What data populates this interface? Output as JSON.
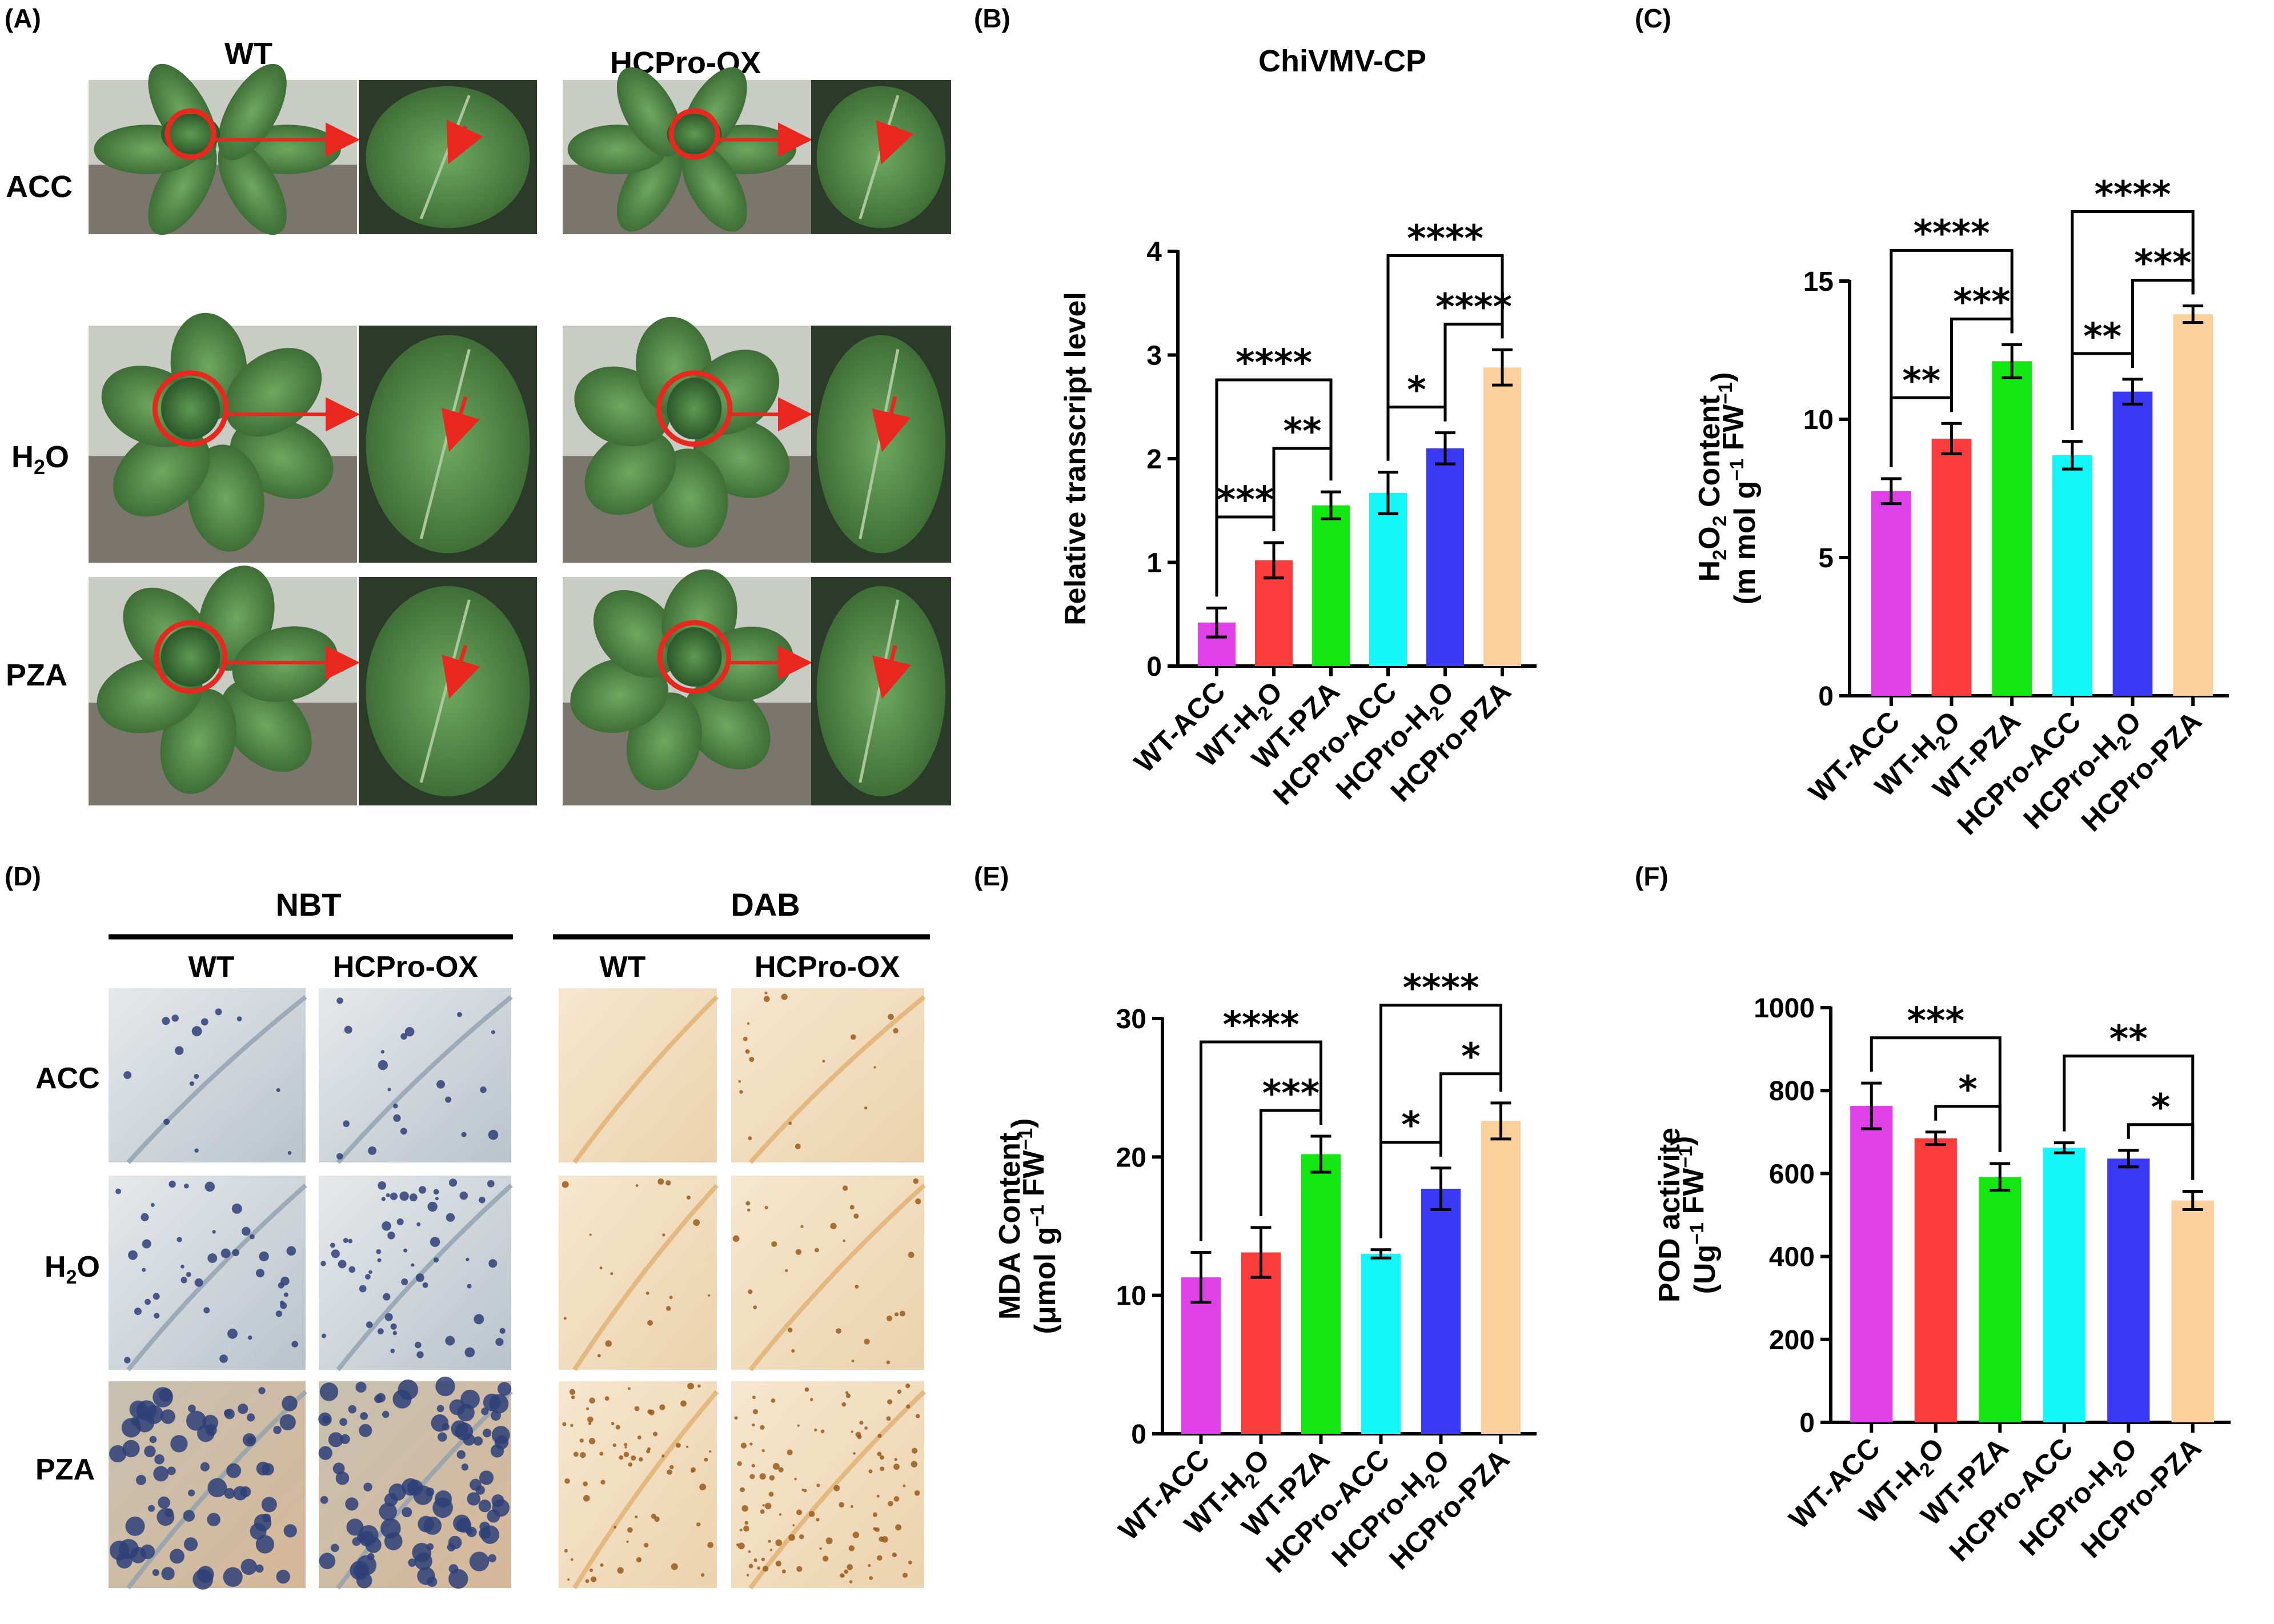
{
  "panels": {
    "A": {
      "label": "(A)",
      "col_headers": [
        "WT",
        "HCPro-OX"
      ],
      "row_labels": [
        "ACC",
        "H2O",
        "PZA"
      ]
    },
    "D": {
      "label": "(D)",
      "groups": [
        "NBT",
        "DAB"
      ],
      "col_headers": [
        "WT",
        "HCPro-OX",
        "WT",
        "HCPro-OX"
      ],
      "row_labels": [
        "ACC",
        "H2O",
        "PZA"
      ]
    }
  },
  "colors": {
    "WT-ACC": "#e040e8",
    "WT-H2O": "#fa3c3c",
    "WT-PZA": "#12e712",
    "HCPro-ACC": "#12f7f7",
    "HCPro-H2O": "#3a3af6",
    "HCPro-PZA": "#fbd09c",
    "leaf_green": "#4f8a45",
    "leaf_dark": "#2f5a2a",
    "soil": "#3b2f25",
    "nbt_bg": "#dfe3e6",
    "nbt_spot": "#2e3f78",
    "dab_bg": "#f1dcc0",
    "dab_spot": "#9a5a1c",
    "annotation_red": "#e8281e"
  },
  "icons": [
    "circle-marker-icon",
    "arrow-pointer-icon"
  ],
  "chart_data": [
    {
      "panel": "(B)",
      "type": "bar",
      "title": "ChiVMV-CP",
      "xlabel": "",
      "ylabel": "Relative transcript level",
      "categories": [
        "WT-ACC",
        "WT-H2O",
        "WT-PZA",
        "HCPro-ACC",
        "HCPro-H2O",
        "HCPro-PZA"
      ],
      "values": [
        0.42,
        1.02,
        1.55,
        1.67,
        2.1,
        2.88
      ],
      "errors": [
        0.14,
        0.17,
        0.13,
        0.2,
        0.15,
        0.17
      ],
      "ylim": [
        0,
        4
      ],
      "yticks": [
        "0",
        "1",
        "2",
        "3",
        "4"
      ],
      "grid": false,
      "significance": [
        {
          "from": 0,
          "to": 1,
          "label": "***"
        },
        {
          "from": 0,
          "to": 2,
          "label": "****"
        },
        {
          "from": 1,
          "to": 2,
          "label": "**"
        },
        {
          "from": 3,
          "to": 4,
          "label": "*"
        },
        {
          "from": 3,
          "to": 5,
          "label": "****"
        },
        {
          "from": 4,
          "to": 5,
          "label": "****"
        }
      ]
    },
    {
      "panel": "(C)",
      "type": "bar",
      "title": "",
      "xlabel": "",
      "ylabel": "H2O2 Content",
      "ylabel_unit": "(m mol g−1 FW−1)",
      "categories": [
        "WT-ACC",
        "WT-H2O",
        "WT-PZA",
        "HCPro-ACC",
        "HCPro-H2O",
        "HCPro-PZA"
      ],
      "values": [
        7.4,
        9.3,
        12.1,
        8.7,
        11.0,
        13.8
      ],
      "errors": [
        0.45,
        0.55,
        0.6,
        0.5,
        0.45,
        0.3
      ],
      "ylim": [
        0,
        15
      ],
      "yticks": [
        "0",
        "5",
        "10",
        "15"
      ],
      "grid": false,
      "significance": [
        {
          "from": 0,
          "to": 1,
          "label": "**"
        },
        {
          "from": 0,
          "to": 2,
          "label": "****"
        },
        {
          "from": 1,
          "to": 2,
          "label": "***"
        },
        {
          "from": 3,
          "to": 4,
          "label": "**"
        },
        {
          "from": 3,
          "to": 5,
          "label": "****"
        },
        {
          "from": 4,
          "to": 5,
          "label": "***"
        }
      ]
    },
    {
      "panel": "(E)",
      "type": "bar",
      "title": "",
      "xlabel": "",
      "ylabel": "MDA Content",
      "ylabel_unit": "(μmol g−1 FW−1)",
      "categories": [
        "WT-ACC",
        "WT-H2O",
        "WT-PZA",
        "HCPro-ACC",
        "HCPro-H2O",
        "HCPro-PZA"
      ],
      "values": [
        11.3,
        13.1,
        20.2,
        13.0,
        17.7,
        22.6
      ],
      "errors": [
        1.8,
        1.8,
        1.3,
        0.3,
        1.5,
        1.3
      ],
      "ylim": [
        0,
        30
      ],
      "yticks": [
        "0",
        "10",
        "20",
        "30"
      ],
      "grid": false,
      "significance": [
        {
          "from": 0,
          "to": 2,
          "label": "****"
        },
        {
          "from": 1,
          "to": 2,
          "label": "***"
        },
        {
          "from": 3,
          "to": 4,
          "label": "*"
        },
        {
          "from": 3,
          "to": 5,
          "label": "****"
        },
        {
          "from": 4,
          "to": 5,
          "label": "*"
        }
      ]
    },
    {
      "panel": "(F)",
      "type": "bar",
      "title": "",
      "xlabel": "",
      "ylabel": "POD activite",
      "ylabel_unit": "(Ug−1 FW−1)",
      "categories": [
        "WT-ACC",
        "WT-H2O",
        "WT-PZA",
        "HCPro-ACC",
        "HCPro-H2O",
        "HCPro-PZA"
      ],
      "values": [
        763,
        685,
        592,
        662,
        636,
        535
      ],
      "errors": [
        55,
        15,
        32,
        12,
        20,
        22
      ],
      "ylim": [
        0,
        1000
      ],
      "yticks": [
        "0",
        "200",
        "400",
        "600",
        "800",
        "1000"
      ],
      "grid": false,
      "significance": [
        {
          "from": 0,
          "to": 2,
          "label": "***"
        },
        {
          "from": 1,
          "to": 2,
          "label": "*"
        },
        {
          "from": 3,
          "to": 5,
          "label": "**"
        },
        {
          "from": 4,
          "to": 5,
          "label": "*"
        }
      ]
    }
  ]
}
